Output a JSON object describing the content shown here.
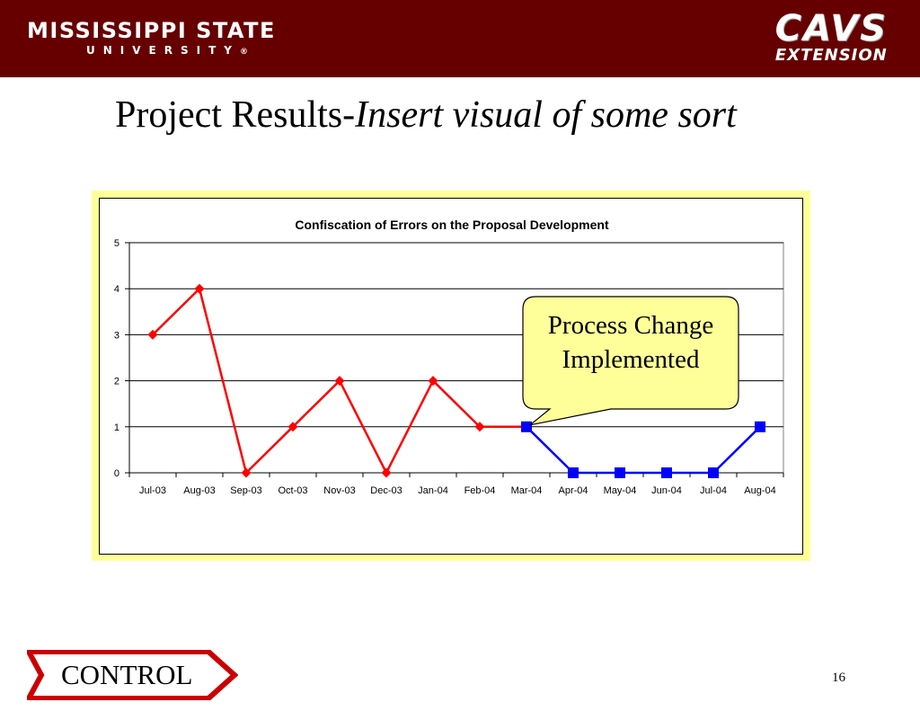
{
  "header": {
    "logo_title": "MISSISSIPPI STATE",
    "logo_subtitle": "UNIVERSITY",
    "logo_registered": "®",
    "cavs_top": "CAVS",
    "cavs_bottom": "EXTENSION",
    "background_color": "#660000"
  },
  "slide": {
    "title_plain": "Project Results-",
    "title_italic": "Insert visual of some sort",
    "page_number": "16"
  },
  "callout": {
    "line1": "Process Change",
    "line2": "Implemented",
    "fill": "#ffff99"
  },
  "control": {
    "label": "CONTROL",
    "border_color": "#cc0000"
  },
  "chart_data": {
    "type": "line",
    "title": "Confiscation of Errors on the Proposal Development",
    "xlabel": "",
    "ylabel": "",
    "categories": [
      "Jul-03",
      "Aug-03",
      "Sep-03",
      "Oct-03",
      "Nov-03",
      "Dec-03",
      "Jan-04",
      "Feb-04",
      "Mar-04",
      "Apr-04",
      "May-04",
      "Jun-04",
      "Jul-04",
      "Aug-04"
    ],
    "series": [
      {
        "color": "#ff0000",
        "marker": "diamond",
        "values": [
          3,
          4,
          0,
          1,
          2,
          0,
          2,
          1,
          1,
          null,
          null,
          null,
          null,
          null
        ]
      },
      {
        "color": "#0000ff",
        "marker": "square",
        "values": [
          null,
          null,
          null,
          null,
          null,
          null,
          null,
          null,
          1,
          0,
          0,
          0,
          0,
          1
        ]
      }
    ],
    "ylim": [
      0,
      5
    ],
    "yticks": [
      0,
      1,
      2,
      3,
      4,
      5
    ],
    "grid": true,
    "background_color": "#ffff99"
  }
}
